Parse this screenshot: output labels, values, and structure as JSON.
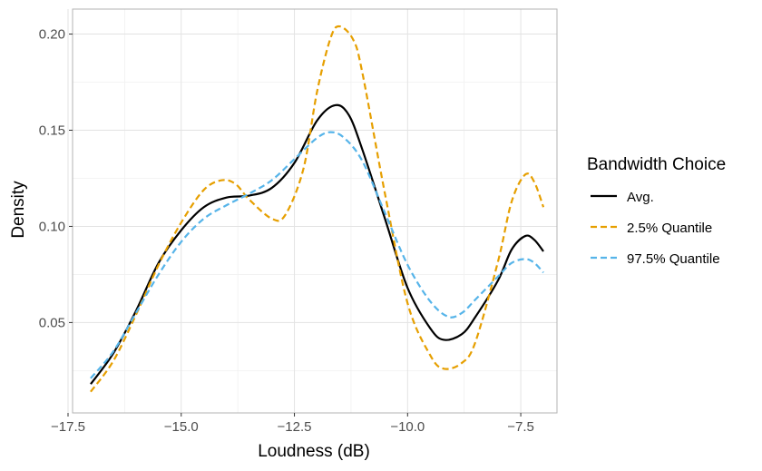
{
  "chart_data": {
    "type": "line",
    "title": "",
    "xlabel": "Loudness (dB)",
    "ylabel": "Density",
    "xlim": [
      -17.4,
      -6.7
    ],
    "ylim": [
      0.003,
      0.213
    ],
    "x_ticks": [
      -17.5,
      -15.0,
      -12.5,
      -10.0,
      -7.5
    ],
    "x_tick_labels": [
      "−17.5",
      "−15.0",
      "−12.5",
      "−10.0",
      "−7.5"
    ],
    "y_ticks": [
      0.05,
      0.1,
      0.15,
      0.2
    ],
    "y_tick_labels": [
      "0.05",
      "0.10",
      "0.15",
      "0.20"
    ],
    "grid": true,
    "legend": {
      "title": "Bandwidth Choice",
      "position": "right"
    },
    "series": [
      {
        "name": "Avg.",
        "color": "#000000",
        "dash": "solid",
        "points": [
          [
            -17.0,
            0.018
          ],
          [
            -16.5,
            0.034
          ],
          [
            -16.0,
            0.056
          ],
          [
            -15.5,
            0.081
          ],
          [
            -15.0,
            0.098
          ],
          [
            -14.5,
            0.11
          ],
          [
            -14.0,
            0.115
          ],
          [
            -13.5,
            0.116
          ],
          [
            -13.0,
            0.12
          ],
          [
            -12.5,
            0.133
          ],
          [
            -12.0,
            0.155
          ],
          [
            -11.6,
            0.163
          ],
          [
            -11.3,
            0.158
          ],
          [
            -11.0,
            0.14
          ],
          [
            -10.5,
            0.104
          ],
          [
            -10.0,
            0.068
          ],
          [
            -9.5,
            0.047
          ],
          [
            -9.2,
            0.041
          ],
          [
            -8.8,
            0.044
          ],
          [
            -8.5,
            0.053
          ],
          [
            -8.0,
            0.072
          ],
          [
            -7.7,
            0.088
          ],
          [
            -7.4,
            0.095
          ],
          [
            -7.2,
            0.093
          ],
          [
            -7.0,
            0.087
          ]
        ]
      },
      {
        "name": "2.5% Quantile",
        "color": "#E69F00",
        "dash": "dashed",
        "points": [
          [
            -17.0,
            0.014
          ],
          [
            -16.5,
            0.03
          ],
          [
            -16.0,
            0.054
          ],
          [
            -15.5,
            0.08
          ],
          [
            -15.0,
            0.102
          ],
          [
            -14.5,
            0.119
          ],
          [
            -14.1,
            0.124
          ],
          [
            -13.8,
            0.122
          ],
          [
            -13.5,
            0.114
          ],
          [
            -13.0,
            0.104
          ],
          [
            -12.7,
            0.106
          ],
          [
            -12.3,
            0.13
          ],
          [
            -12.0,
            0.17
          ],
          [
            -11.7,
            0.198
          ],
          [
            -11.5,
            0.204
          ],
          [
            -11.2,
            0.197
          ],
          [
            -11.0,
            0.18
          ],
          [
            -10.5,
            0.117
          ],
          [
            -10.0,
            0.06
          ],
          [
            -9.5,
            0.033
          ],
          [
            -9.2,
            0.026
          ],
          [
            -8.8,
            0.029
          ],
          [
            -8.5,
            0.04
          ],
          [
            -8.0,
            0.082
          ],
          [
            -7.7,
            0.113
          ],
          [
            -7.4,
            0.127
          ],
          [
            -7.2,
            0.123
          ],
          [
            -7.0,
            0.11
          ]
        ]
      },
      {
        "name": "97.5% Quantile",
        "color": "#56B4E9",
        "dash": "dashed",
        "points": [
          [
            -17.0,
            0.021
          ],
          [
            -16.5,
            0.035
          ],
          [
            -16.0,
            0.055
          ],
          [
            -15.5,
            0.075
          ],
          [
            -15.0,
            0.092
          ],
          [
            -14.5,
            0.104
          ],
          [
            -14.0,
            0.111
          ],
          [
            -13.5,
            0.117
          ],
          [
            -13.0,
            0.124
          ],
          [
            -12.5,
            0.135
          ],
          [
            -12.0,
            0.146
          ],
          [
            -11.7,
            0.149
          ],
          [
            -11.4,
            0.146
          ],
          [
            -11.0,
            0.134
          ],
          [
            -10.5,
            0.107
          ],
          [
            -10.0,
            0.08
          ],
          [
            -9.5,
            0.061
          ],
          [
            -9.1,
            0.053
          ],
          [
            -8.8,
            0.055
          ],
          [
            -8.5,
            0.062
          ],
          [
            -8.0,
            0.074
          ],
          [
            -7.7,
            0.081
          ],
          [
            -7.4,
            0.083
          ],
          [
            -7.2,
            0.081
          ],
          [
            -7.0,
            0.076
          ]
        ]
      }
    ]
  }
}
